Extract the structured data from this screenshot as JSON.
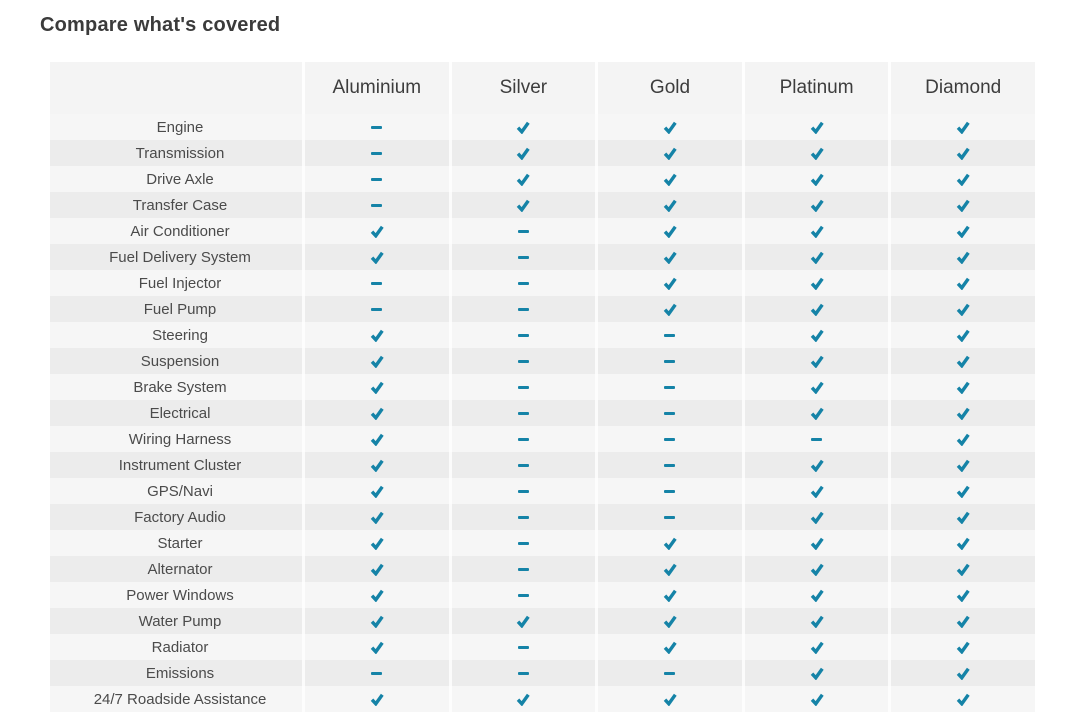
{
  "title": "Compare what's covered",
  "colors": {
    "accent": "#1583a7",
    "row_odd": "#f6f6f6",
    "row_even": "#ececec",
    "header_bg": "#f4f4f4"
  },
  "icons": {
    "covered": "check-icon",
    "not_covered": "dash-icon"
  },
  "table": {
    "plans": [
      "Aluminium",
      "Silver",
      "Gold",
      "Platinum",
      "Diamond"
    ],
    "rows": [
      {
        "label": "Engine",
        "coverage": [
          0,
          1,
          1,
          1,
          1
        ]
      },
      {
        "label": "Transmission",
        "coverage": [
          0,
          1,
          1,
          1,
          1
        ]
      },
      {
        "label": "Drive Axle",
        "coverage": [
          0,
          1,
          1,
          1,
          1
        ]
      },
      {
        "label": "Transfer Case",
        "coverage": [
          0,
          1,
          1,
          1,
          1
        ]
      },
      {
        "label": "Air Conditioner",
        "coverage": [
          1,
          0,
          1,
          1,
          1
        ]
      },
      {
        "label": "Fuel Delivery System",
        "coverage": [
          1,
          0,
          1,
          1,
          1
        ]
      },
      {
        "label": "Fuel Injector",
        "coverage": [
          0,
          0,
          1,
          1,
          1
        ]
      },
      {
        "label": "Fuel Pump",
        "coverage": [
          0,
          0,
          1,
          1,
          1
        ]
      },
      {
        "label": "Steering",
        "coverage": [
          1,
          0,
          0,
          1,
          1
        ]
      },
      {
        "label": "Suspension",
        "coverage": [
          1,
          0,
          0,
          1,
          1
        ]
      },
      {
        "label": "Brake System",
        "coverage": [
          1,
          0,
          0,
          1,
          1
        ]
      },
      {
        "label": "Electrical",
        "coverage": [
          1,
          0,
          0,
          1,
          1
        ]
      },
      {
        "label": "Wiring Harness",
        "coverage": [
          1,
          0,
          0,
          0,
          1
        ]
      },
      {
        "label": "Instrument Cluster",
        "coverage": [
          1,
          0,
          0,
          1,
          1
        ]
      },
      {
        "label": "GPS/Navi",
        "coverage": [
          1,
          0,
          0,
          1,
          1
        ]
      },
      {
        "label": "Factory Audio",
        "coverage": [
          1,
          0,
          0,
          1,
          1
        ]
      },
      {
        "label": "Starter",
        "coverage": [
          1,
          0,
          1,
          1,
          1
        ]
      },
      {
        "label": "Alternator",
        "coverage": [
          1,
          0,
          1,
          1,
          1
        ]
      },
      {
        "label": "Power Windows",
        "coverage": [
          1,
          0,
          1,
          1,
          1
        ]
      },
      {
        "label": "Water Pump",
        "coverage": [
          1,
          1,
          1,
          1,
          1
        ]
      },
      {
        "label": "Radiator",
        "coverage": [
          1,
          0,
          1,
          1,
          1
        ]
      },
      {
        "label": "Emissions",
        "coverage": [
          0,
          0,
          0,
          1,
          1
        ]
      },
      {
        "label": "24/7 Roadside Assistance",
        "coverage": [
          1,
          1,
          1,
          1,
          1
        ]
      }
    ]
  }
}
